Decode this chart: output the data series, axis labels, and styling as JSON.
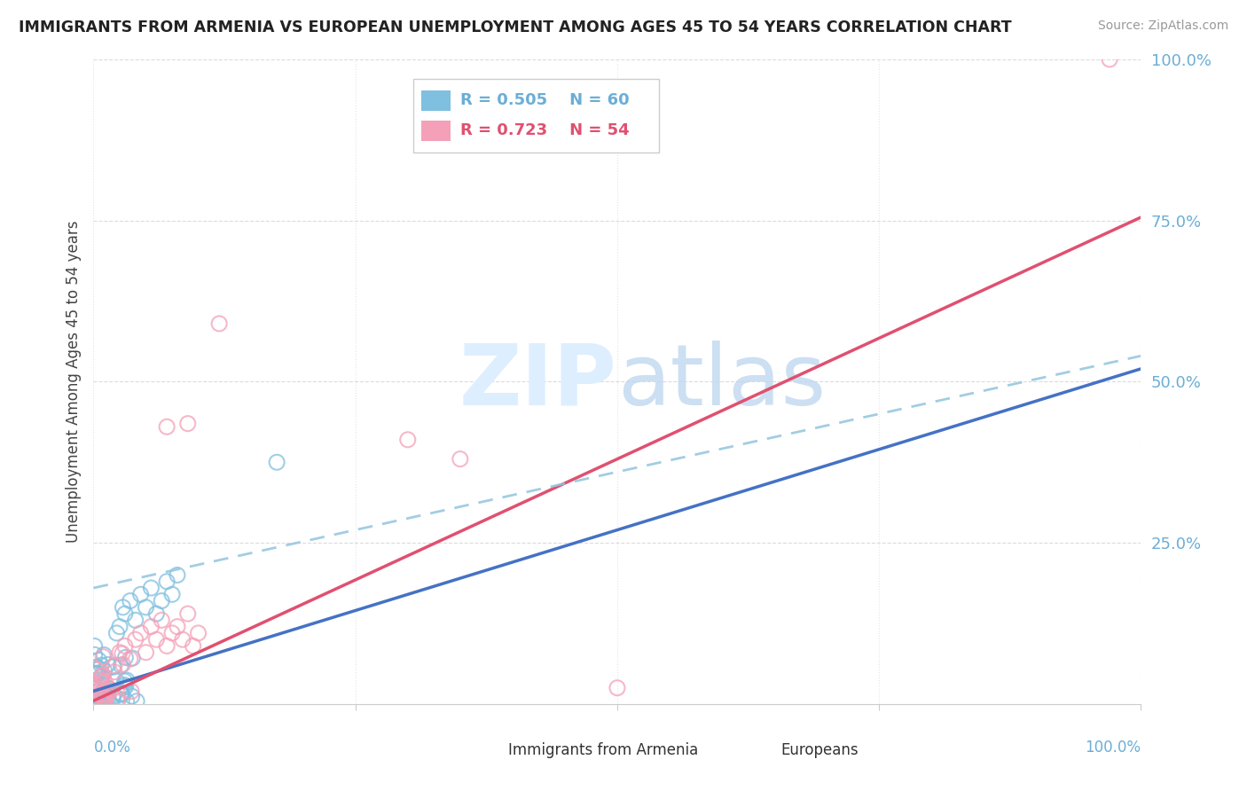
{
  "title": "IMMIGRANTS FROM ARMENIA VS EUROPEAN UNEMPLOYMENT AMONG AGES 45 TO 54 YEARS CORRELATION CHART",
  "source": "Source: ZipAtlas.com",
  "ylabel": "Unemployment Among Ages 45 to 54 years",
  "yticks_labels": [
    "25.0%",
    "50.0%",
    "75.0%",
    "100.0%"
  ],
  "yticks_values": [
    0.25,
    0.5,
    0.75,
    1.0
  ],
  "legend_blue_label": "Immigrants from Armenia",
  "legend_pink_label": "Europeans",
  "R_blue": 0.505,
  "N_blue": 60,
  "R_pink": 0.723,
  "N_pink": 54,
  "color_blue": "#7fbfdf",
  "color_pink": "#f4a0b8",
  "color_blue_solid": "#4472c4",
  "color_pink_line": "#e05070",
  "color_blue_dashed": "#92c5de",
  "background_color": "#ffffff",
  "watermark_color": "#ddeeff",
  "blue_slope": 0.5,
  "blue_intercept": 0.02,
  "pink_slope": 0.75,
  "pink_intercept": 0.005
}
